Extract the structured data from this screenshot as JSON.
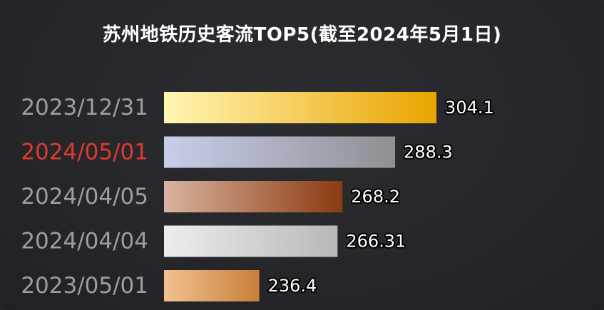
{
  "chart_data": {
    "type": "bar",
    "orientation": "horizontal",
    "title": "苏州地铁历史客流TOP5(截至2024年5月1日)",
    "categories": [
      "2023/12/31",
      "2024/05/01",
      "2024/04/05",
      "2024/04/04",
      "2023/05/01"
    ],
    "values": [
      304.1,
      288.3,
      268.2,
      266.31,
      236.4
    ],
    "value_labels": [
      "304.1",
      "288.3",
      "268.2",
      "266.31",
      "236.4"
    ],
    "xlim": [
      200,
      310
    ],
    "grid": false,
    "highlight_category": "2024/05/01",
    "colors": {
      "background": "#252629",
      "label_default": "#9c9ea3",
      "label_highlight": "#e03a2e",
      "value_text": "#ffffff",
      "bars": [
        [
          "#fff6b5",
          "#e9a400"
        ],
        [
          "#c8cdea",
          "#8f9093"
        ],
        [
          "#d9b4a0",
          "#8a3a10"
        ],
        [
          "#ededee",
          "#b8b8ba"
        ],
        [
          "#f2c191",
          "#c6803a"
        ]
      ]
    }
  }
}
